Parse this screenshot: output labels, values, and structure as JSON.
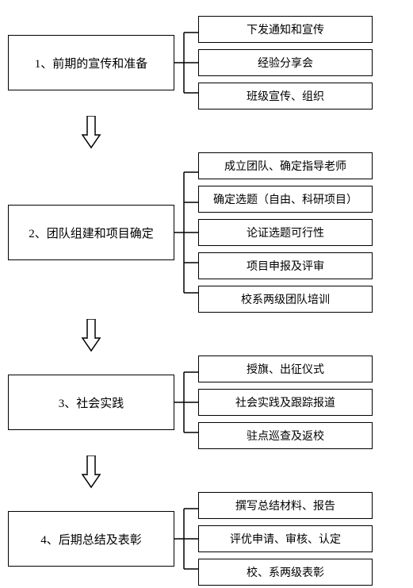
{
  "diagram": {
    "type": "flowchart",
    "background_color": "#ffffff",
    "border_color": "#000000",
    "text_color": "#000000",
    "stage_fontsize": 15,
    "detail_fontsize": 14,
    "stages": [
      {
        "label": "1、前期的宣传和准备",
        "details": [
          "下发通知和宣传",
          "经验分享会",
          "班级宣传、组织"
        ]
      },
      {
        "label": "2、团队组建和项目确定",
        "details": [
          "成立团队、确定指导老师",
          "确定选题（自由、科研项目）",
          "论证选题可行性",
          "项目申报及评审",
          "校系两级团队培训"
        ]
      },
      {
        "label": "3、社会实践",
        "details": [
          "授旗、出征仪式",
          "社会实践及跟踪报道",
          "驻点巡查及返校"
        ]
      },
      {
        "label": "4、后期总结及表彰",
        "details": [
          "撰写总结材料、报告",
          "评优申请、审核、认定",
          "校、系两级表彰"
        ]
      }
    ]
  }
}
